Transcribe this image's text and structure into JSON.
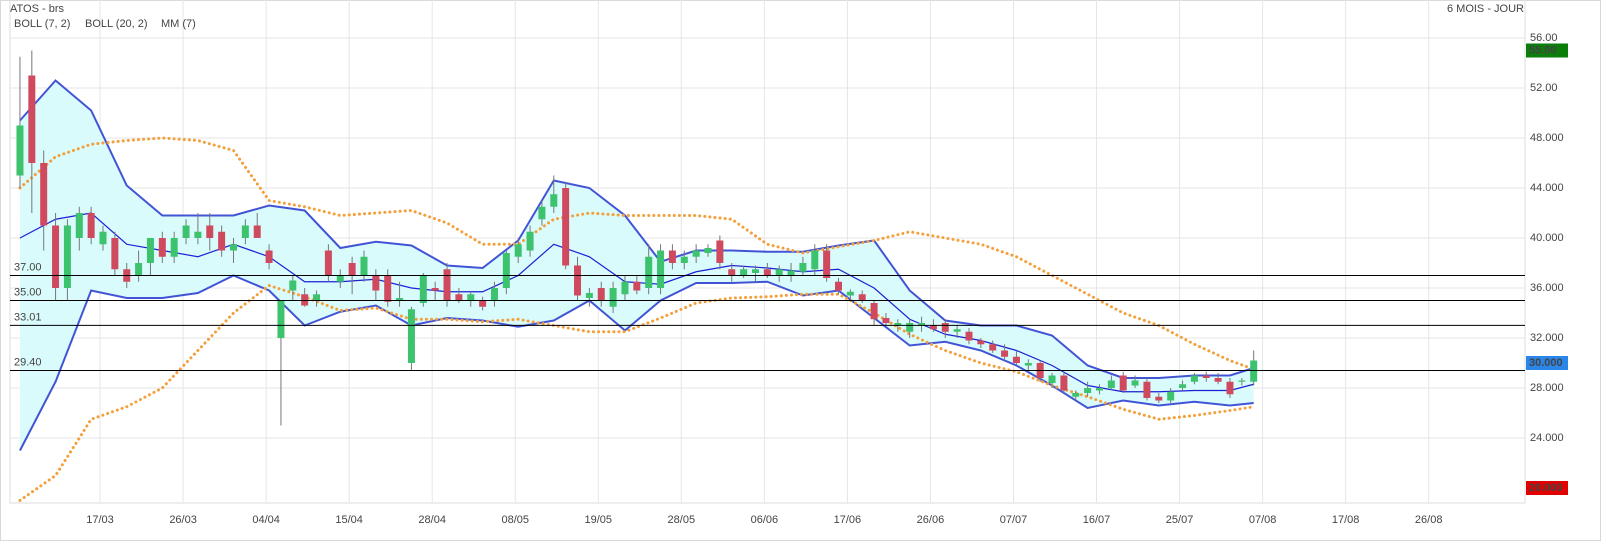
{
  "chart_data": {
    "type": "candlestick",
    "title": "ATOS - brs",
    "period": "6 MOIS - JOUR",
    "up_color": "#3dc26e",
    "down_color": "#cf4a5f",
    "grid": true,
    "xlim": [
      -0.84,
      126.87
    ],
    "ylim": [
      18.8,
      58.24
    ],
    "xticks": [
      {
        "value": 6.75,
        "label": "17/03"
      },
      {
        "value": 13.75,
        "label": "26/03"
      },
      {
        "value": 20.75,
        "label": "04/04"
      },
      {
        "value": 27.75,
        "label": "15/04"
      },
      {
        "value": 34.75,
        "label": "28/04"
      },
      {
        "value": 41.75,
        "label": "08/05"
      },
      {
        "value": 48.75,
        "label": "19/05"
      },
      {
        "value": 55.75,
        "label": "28/05"
      },
      {
        "value": 62.75,
        "label": "06/06"
      },
      {
        "value": 69.75,
        "label": "17/06"
      },
      {
        "value": 76.75,
        "label": "26/06"
      },
      {
        "value": 83.75,
        "label": "07/07"
      },
      {
        "value": 90.75,
        "label": "16/07"
      },
      {
        "value": 97.75,
        "label": "25/07"
      },
      {
        "value": 104.75,
        "label": "07/08"
      },
      {
        "value": 111.75,
        "label": "17/08"
      },
      {
        "value": 118.75,
        "label": "26/08"
      }
    ],
    "yticks": [
      {
        "value": 56,
        "label": "56.00"
      },
      {
        "value": 52,
        "label": "52.00"
      },
      {
        "value": 48,
        "label": "48.000"
      },
      {
        "value": 44,
        "label": "44.000"
      },
      {
        "value": 40,
        "label": "40.000"
      },
      {
        "value": 36,
        "label": "36.000"
      },
      {
        "value": 32,
        "label": "32.000"
      },
      {
        "value": 28,
        "label": "28.000"
      },
      {
        "value": 24,
        "label": "24.000"
      }
    ],
    "levels": [
      {
        "value": 37,
        "label": "37.00"
      },
      {
        "value": 35,
        "label": "35.00"
      },
      {
        "value": 33.01,
        "label": "33.01"
      },
      {
        "value": 29.4,
        "label": "29.40"
      }
    ],
    "markers": [
      {
        "value": 55,
        "label": "55.00",
        "color": "#0b7d0b"
      },
      {
        "value": 30,
        "label": "30.000",
        "color": "#2a86e8"
      },
      {
        "value": 20,
        "label": "20.000",
        "color": "#e00000"
      }
    ],
    "ohlc": {
      "open": [
        45,
        53,
        46,
        41,
        36,
        40,
        42,
        39.5,
        40,
        37.5,
        37,
        38,
        40,
        38.5,
        40,
        40,
        41,
        40.5,
        39,
        40,
        41,
        39,
        32,
        35.8,
        35.5,
        35,
        39,
        36.5,
        38,
        37,
        37,
        37,
        35,
        30,
        34.8,
        36,
        37.5,
        35.5,
        35,
        35,
        35,
        36,
        38.5,
        39,
        41.5,
        42.5,
        44,
        37.8,
        35.2,
        36,
        34.5,
        35.5,
        36.5,
        36,
        36,
        39,
        38,
        38.5,
        38.8,
        39.8,
        37.5,
        37,
        37.2,
        37.5,
        37,
        37,
        37.3,
        37.5,
        39,
        36.5,
        35.4,
        35.5,
        34.8,
        33.6,
        33,
        32.5,
        33,
        33,
        33.2,
        32.5,
        32.5,
        31.8,
        31.5,
        31,
        30.5,
        29.8,
        30,
        28.4,
        29,
        27.3,
        27.6,
        27.8,
        28,
        29,
        28.2,
        28.5,
        27.3,
        27,
        28,
        28.5,
        29,
        28.8,
        28.5,
        28.5,
        28.5
      ],
      "high": [
        54.5,
        55,
        47,
        42,
        41.5,
        42.5,
        42.5,
        41,
        40.5,
        38,
        39,
        40,
        40.5,
        40.5,
        41.5,
        42,
        42,
        41,
        40,
        41.5,
        42,
        39.5,
        35,
        37,
        36,
        35.8,
        39.5,
        37.5,
        38.5,
        39,
        37.5,
        37.5,
        36.5,
        34.5,
        37.2,
        36.5,
        38,
        36,
        35.7,
        35.3,
        36.5,
        39,
        40,
        41,
        43,
        45,
        44.5,
        38.5,
        36,
        36.5,
        36.5,
        37,
        37,
        39.5,
        39.5,
        39.5,
        39,
        39.5,
        39.5,
        40.2,
        38,
        37.8,
        37.8,
        38,
        37.8,
        38,
        38.5,
        39.5,
        39.5,
        36.8,
        35.9,
        35.8,
        35,
        34,
        33.5,
        33.5,
        33.7,
        33.5,
        33.5,
        33,
        32.8,
        32,
        31.8,
        31.5,
        31,
        30.3,
        30.2,
        29.2,
        29.3,
        27.8,
        28.5,
        28.3,
        29,
        29.3,
        29,
        28.8,
        27.6,
        28,
        28.6,
        29.2,
        29.3,
        29.2,
        28.8,
        28.8,
        31
      ],
      "low": [
        44,
        42,
        39,
        35,
        35,
        39,
        39.5,
        39,
        37,
        36,
        36.5,
        37,
        38,
        38,
        39.5,
        39.5,
        39,
        38.5,
        38,
        39.5,
        40,
        37.5,
        25,
        35,
        34.5,
        34.5,
        36.5,
        36,
        35.5,
        36.5,
        35,
        34.5,
        34.5,
        29.4,
        34.5,
        35,
        34.5,
        34.8,
        34.5,
        34.2,
        34.5,
        35.5,
        38,
        38.5,
        41,
        42,
        37.5,
        35,
        34.5,
        34.5,
        34,
        35,
        35.5,
        35.5,
        35.5,
        37.5,
        37.5,
        38,
        38.5,
        37.5,
        36.5,
        36.8,
        36.5,
        36.8,
        36.5,
        36.5,
        37,
        37,
        36.5,
        35.5,
        35,
        34.8,
        33,
        33,
        32.5,
        32,
        32.5,
        32.5,
        32,
        32,
        31.5,
        31.2,
        30.8,
        30.3,
        29.8,
        29.3,
        28.5,
        28,
        27.6,
        27,
        27.3,
        27.5,
        27.8,
        27.6,
        28,
        27,
        26.8,
        26.8,
        27.8,
        28.3,
        28.5,
        28.3,
        27.2,
        28.2,
        28.2
      ],
      "close": [
        49,
        46,
        41,
        36,
        41,
        42,
        40,
        40.5,
        37.5,
        36.5,
        38,
        40,
        38.5,
        40,
        41,
        40.5,
        40,
        39,
        39.5,
        41,
        40,
        38,
        35,
        36.6,
        34.6,
        35.5,
        37,
        37,
        37,
        38.5,
        35.8,
        34.9,
        35.2,
        34.3,
        37,
        35.8,
        35,
        35,
        35.5,
        34.5,
        36,
        38.8,
        39.5,
        40.5,
        42.5,
        43.5,
        37.8,
        35.4,
        35.6,
        35,
        36,
        36.5,
        35.8,
        38.5,
        39,
        38,
        38.5,
        39,
        39.2,
        38,
        37,
        37.5,
        37.5,
        37,
        37.5,
        37.4,
        38,
        39,
        36.8,
        35.8,
        35.7,
        35,
        33.5,
        33.2,
        33.2,
        33.2,
        33.2,
        32.7,
        32.5,
        32.7,
        31.8,
        31.5,
        31,
        30.5,
        30,
        30,
        28.8,
        29,
        27.8,
        27.6,
        28,
        28,
        28.6,
        27.8,
        28.6,
        27.2,
        27,
        27.7,
        28.3,
        29,
        28.8,
        28.5,
        27.5,
        28.6,
        30.2
      ]
    },
    "indicator_x": [
      0,
      3,
      6,
      9,
      12,
      15,
      18,
      21,
      24,
      27,
      30,
      33,
      36,
      39,
      42,
      45,
      48,
      51,
      54,
      57,
      60,
      63,
      66,
      69,
      72,
      75,
      78,
      81,
      84,
      87,
      90,
      93,
      96,
      99,
      102,
      104
    ],
    "indicators": [
      {
        "name": "BOLL (7, 2)",
        "color": "#4254d6",
        "fill": "#d9fbfb",
        "upper": [
          49.4,
          52.6,
          50.2,
          44.2,
          41.8,
          41.8,
          41.8,
          42.6,
          42.2,
          39.2,
          39.7,
          39.4,
          37.8,
          37.6,
          39.8,
          44.6,
          44,
          41.8,
          38.1,
          39,
          39,
          38.9,
          38.9,
          39.4,
          39.8,
          35.8,
          33.4,
          33,
          33,
          32.2,
          29.8,
          28.8,
          28.8,
          29,
          29,
          29.6
        ],
        "lower": [
          23,
          28.5,
          35.8,
          35.2,
          35.2,
          35.6,
          37,
          35.8,
          33,
          34.1,
          34.6,
          33,
          33.6,
          33.4,
          32.9,
          33.4,
          35,
          32.6,
          35,
          36.4,
          36.4,
          36.5,
          35.4,
          35.8,
          33.6,
          31.4,
          31.7,
          31,
          29.8,
          28.2,
          26.4,
          27,
          26.6,
          26.9,
          26.6,
          26.8
        ]
      },
      {
        "name": "BOLL (20, 2)",
        "color": "#f3a03c",
        "dashed": true,
        "upper": [
          44,
          46.5,
          47.5,
          47.8,
          48,
          47.8,
          47,
          43,
          42.5,
          41.8,
          42,
          42.2,
          41.2,
          39.5,
          39.5,
          41.5,
          42,
          41.8,
          41.8,
          41.8,
          41.5,
          39.5,
          38.8,
          39.3,
          39.8,
          40.5,
          40,
          39.5,
          38.5,
          37,
          35.5,
          34,
          33,
          31.5,
          30.2,
          29.5
        ],
        "lower": [
          19,
          21,
          25.5,
          26.5,
          28,
          31,
          34,
          36.2,
          35.3,
          34.2,
          34.4,
          33.5,
          33.5,
          33.3,
          33.5,
          33,
          32.5,
          32.5,
          33.6,
          34.8,
          35.2,
          35.3,
          35.5,
          35.5,
          34,
          32.3,
          31,
          30,
          29.3,
          28.2,
          27.3,
          26.3,
          25.5,
          25.8,
          26.2,
          26.5
        ]
      },
      {
        "name": "MM (7)",
        "color": "#1f1fd6",
        "values": [
          40,
          41.5,
          42,
          39.5,
          39,
          38.5,
          39.5,
          38.5,
          36.5,
          36.5,
          36.7,
          36,
          35.7,
          35.7,
          37,
          39.5,
          38.5,
          36.5,
          36.3,
          37.3,
          37.8,
          37.6,
          37.3,
          37.5,
          36,
          33.5,
          32.3,
          31.8,
          31,
          29.8,
          28.2,
          27.7,
          27.7,
          27.8,
          27.8,
          28.3
        ]
      }
    ]
  }
}
